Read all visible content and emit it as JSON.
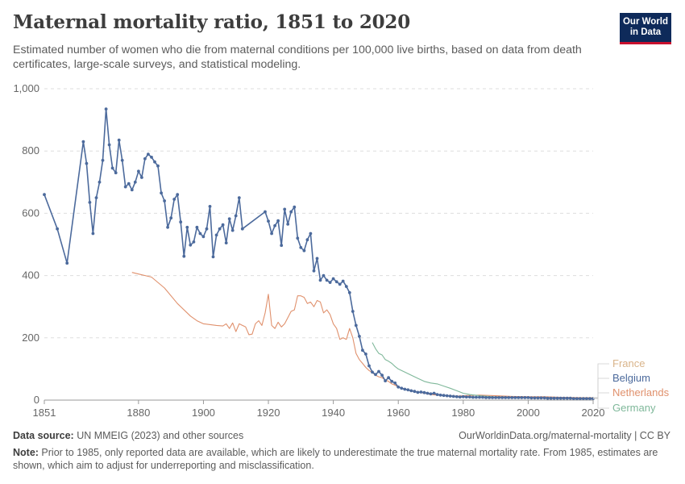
{
  "header": {
    "title": "Maternal mortality ratio, 1851 to 2020",
    "subtitle": "Estimated number of women who die from maternal conditions per 100,000 live births, based on data from death certificates, large-scale surveys, and statistical modeling."
  },
  "logo": {
    "line1": "Our World",
    "line2": "in Data",
    "bg": "#0e2a5a",
    "accent": "#c8102e"
  },
  "footer": {
    "source_label": "Data source:",
    "source_text": " UN MMEIG (2023) and other sources",
    "url": "OurWorldinData.org/maternal-mortality | CC BY",
    "note_label": "Note:",
    "note_text": " Prior to 1985, only reported data are available, which are likely to underestimate the true maternal mortality rate. From 1985, estimates are shown, which aim to adjust for underreporting and misclassification."
  },
  "chart_data": {
    "type": "line",
    "xlim": [
      1851,
      2020
    ],
    "ylim": [
      0,
      1000
    ],
    "x_ticks": [
      1851,
      1880,
      1900,
      1920,
      1940,
      1960,
      1980,
      2000,
      2020
    ],
    "y_ticks": [
      0,
      200,
      400,
      600,
      800,
      1000
    ],
    "y_tick_labels": [
      "0",
      "200",
      "400",
      "600",
      "800",
      "1,000"
    ],
    "grid": "horizontal dashed",
    "legend_position": "right, end of lines",
    "series": [
      {
        "name": "France",
        "color": "#d9b48a",
        "markers": false,
        "x": [
          1990,
          1995,
          2000,
          2005,
          2010,
          2015,
          2020
        ],
        "y": [
          12,
          11,
          10,
          9,
          8,
          8,
          8
        ]
      },
      {
        "name": "Belgium",
        "color": "#4c6a9c",
        "markers": true,
        "x": [
          1851,
          1855,
          1858,
          1863,
          1864,
          1865,
          1866,
          1867,
          1868,
          1869,
          1870,
          1871,
          1872,
          1873,
          1874,
          1875,
          1876,
          1877,
          1878,
          1879,
          1880,
          1881,
          1882,
          1883,
          1884,
          1885,
          1886,
          1887,
          1888,
          1889,
          1890,
          1891,
          1892,
          1893,
          1894,
          1895,
          1896,
          1897,
          1898,
          1899,
          1900,
          1901,
          1902,
          1903,
          1904,
          1905,
          1906,
          1907,
          1908,
          1909,
          1910,
          1911,
          1912,
          1919,
          1920,
          1921,
          1922,
          1923,
          1924,
          1925,
          1926,
          1927,
          1928,
          1929,
          1930,
          1931,
          1932,
          1933,
          1934,
          1935,
          1936,
          1937,
          1938,
          1939,
          1940,
          1941,
          1942,
          1943,
          1944,
          1945,
          1946,
          1947,
          1948,
          1949,
          1950,
          1951,
          1952,
          1953,
          1954,
          1955,
          1956,
          1957,
          1958,
          1959,
          1960,
          1961,
          1962,
          1963,
          1964,
          1965,
          1966,
          1967,
          1968,
          1969,
          1970,
          1971,
          1972,
          1973,
          1974,
          1975,
          1976,
          1977,
          1978,
          1979,
          1980,
          1981,
          1982,
          1983,
          1984,
          1985,
          1986,
          1987,
          1988,
          1989,
          1990,
          1991,
          1992,
          1993,
          1994,
          1995,
          1996,
          1997,
          1998,
          1999,
          2000,
          2001,
          2002,
          2003,
          2004,
          2005,
          2006,
          2007,
          2008,
          2009,
          2010,
          2011,
          2012,
          2013,
          2014,
          2015,
          2016,
          2017,
          2018,
          2019,
          2020
        ],
        "y": [
          660,
          550,
          440,
          830,
          760,
          635,
          535,
          650,
          700,
          770,
          935,
          820,
          745,
          730,
          835,
          770,
          685,
          695,
          675,
          700,
          735,
          715,
          775,
          790,
          780,
          765,
          752,
          665,
          640,
          555,
          585,
          645,
          660,
          572,
          462,
          555,
          498,
          508,
          555,
          535,
          525,
          550,
          622,
          460,
          530,
          550,
          563,
          505,
          582,
          545,
          592,
          650,
          550,
          605,
          575,
          535,
          560,
          576,
          497,
          613,
          565,
          605,
          620,
          520,
          490,
          480,
          515,
          535,
          415,
          455,
          385,
          400,
          385,
          378,
          390,
          380,
          372,
          382,
          365,
          345,
          285,
          240,
          205,
          160,
          148,
          110,
          90,
          82,
          92,
          80,
          62,
          72,
          60,
          55,
          42,
          38,
          35,
          33,
          30,
          28,
          25,
          26,
          24,
          22,
          20,
          22,
          18,
          16,
          15,
          14,
          13,
          12,
          11,
          10,
          11,
          10,
          10,
          9,
          9,
          9,
          9,
          8,
          8,
          8,
          8,
          8,
          8,
          8,
          8,
          8,
          8,
          8,
          8,
          8,
          8,
          7,
          7,
          7,
          7,
          7,
          6,
          6,
          6,
          6,
          6,
          6,
          6,
          6,
          5,
          5,
          5,
          5,
          5,
          5,
          5
        ]
      },
      {
        "name": "Netherlands",
        "color": "#e0916d",
        "markers": false,
        "x": [
          1878,
          1880,
          1884,
          1888,
          1892,
          1896,
          1898,
          1900,
          1904,
          1906,
          1907,
          1908,
          1909,
          1910,
          1911,
          1912,
          1913,
          1914,
          1915,
          1916,
          1917,
          1918,
          1919,
          1920,
          1921,
          1922,
          1923,
          1924,
          1925,
          1926,
          1927,
          1928,
          1929,
          1930,
          1931,
          1932,
          1933,
          1934,
          1935,
          1936,
          1937,
          1938,
          1939,
          1940,
          1941,
          1942,
          1943,
          1944,
          1945,
          1946,
          1947,
          1948,
          1949,
          1950,
          1951,
          1952,
          1953,
          1954,
          1955,
          1956,
          1957,
          1958,
          1959,
          1960,
          1962,
          1964,
          1966,
          1968,
          1970,
          1972,
          1974,
          1976,
          1978,
          1980,
          1985,
          1990,
          1995,
          2000,
          2005,
          2010,
          2015,
          2020
        ],
        "y": [
          410,
          405,
          395,
          360,
          310,
          270,
          255,
          245,
          240,
          238,
          245,
          230,
          248,
          220,
          245,
          240,
          235,
          210,
          212,
          245,
          255,
          240,
          280,
          340,
          240,
          230,
          250,
          235,
          245,
          265,
          285,
          290,
          335,
          335,
          330,
          310,
          315,
          300,
          320,
          315,
          280,
          290,
          275,
          245,
          230,
          195,
          200,
          195,
          230,
          200,
          150,
          130,
          118,
          105,
          95,
          88,
          80,
          75,
          72,
          65,
          60,
          52,
          48,
          42,
          36,
          30,
          26,
          22,
          18,
          16,
          15,
          14,
          13,
          14,
          16,
          14,
          12,
          11,
          11,
          9,
          8,
          7
        ]
      },
      {
        "name": "Germany",
        "color": "#7fb89a",
        "markers": false,
        "x": [
          1952,
          1953,
          1954,
          1955,
          1956,
          1957,
          1958,
          1959,
          1960,
          1962,
          1964,
          1966,
          1968,
          1970,
          1972,
          1974,
          1976,
          1978,
          1980,
          1982,
          1985,
          1990,
          1995,
          2000,
          2005,
          2010,
          2015,
          2020
        ],
        "y": [
          185,
          165,
          150,
          145,
          130,
          125,
          118,
          108,
          100,
          90,
          80,
          70,
          60,
          55,
          52,
          45,
          38,
          30,
          22,
          18,
          14,
          10,
          9,
          8,
          7,
          6,
          5,
          5
        ]
      }
    ]
  }
}
